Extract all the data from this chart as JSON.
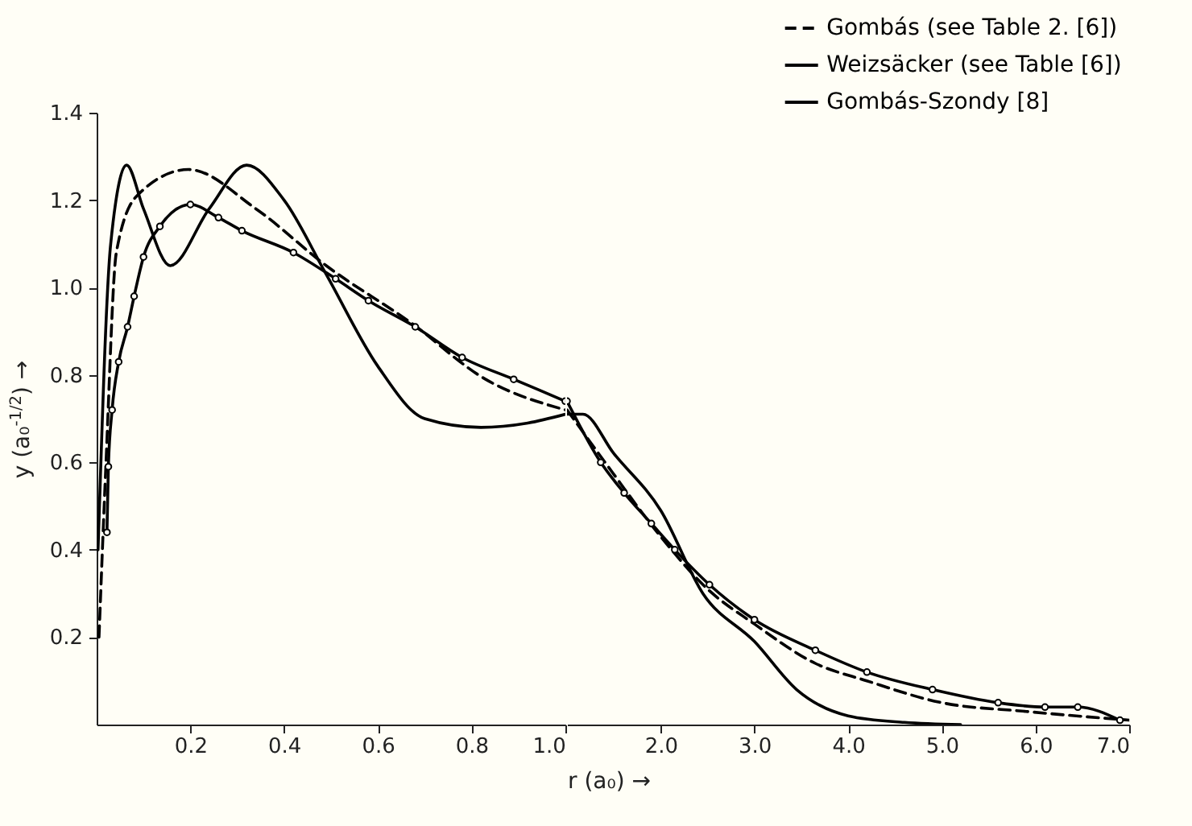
{
  "chart_data": [
    {
      "type": "line",
      "ylabel": "y (a₀$^{-1/2}$) →",
      "xlim": [
        0,
        1
      ],
      "xticks": [
        {
          "value": 0.2,
          "label": "0.2"
        },
        {
          "value": 0.4,
          "label": "0.4"
        },
        {
          "value": 0.6,
          "label": "0.6"
        },
        {
          "value": 0.8,
          "label": "0.8"
        },
        {
          "value": 1,
          "label": "1.0"
        }
      ],
      "ylim": [
        0,
        1.4
      ],
      "yticks": [
        {
          "value": 0.2,
          "label": "0.2"
        },
        {
          "value": 0.4,
          "label": "0.4"
        },
        {
          "value": 0.6,
          "label": "0.6"
        },
        {
          "value": 0.8,
          "label": "0.8"
        },
        {
          "value": 1,
          "label": "1.0"
        },
        {
          "value": 1.2,
          "label": "1.2"
        },
        {
          "value": 1.4,
          "label": "1.4"
        }
      ],
      "grid": false,
      "series": [
        {
          "color": "#000000",
          "line_style": "dashed",
          "x": [
            0.005,
            0.02,
            0.042,
            0.086,
            0.196,
            0.34,
            0.49,
            0.67,
            0.83,
            1.0
          ],
          "values": [
            0.2,
            0.6,
            1.08,
            1.21,
            1.27,
            1.18,
            1.05,
            0.92,
            0.79,
            0.72
          ]
        },
        {
          "color": "#000000",
          "line_style": "solid",
          "marker": "circle",
          "x": [
            0.022,
            0.025,
            0.033,
            0.047,
            0.066,
            0.08,
            0.1,
            0.135,
            0.2,
            0.26,
            0.31,
            0.42,
            0.51,
            0.58,
            0.68,
            0.78,
            0.89,
            1.0
          ],
          "values": [
            0.44,
            0.59,
            0.72,
            0.83,
            0.91,
            0.98,
            1.07,
            1.14,
            1.19,
            1.16,
            1.13,
            1.08,
            1.02,
            0.97,
            0.91,
            0.84,
            0.79,
            0.74
          ]
        },
        {
          "color": "#000000",
          "line_style": "solid",
          "x": [
            0.003,
            0.03,
            0.064,
            0.1,
            0.157,
            0.24,
            0.32,
            0.4,
            0.49,
            0.6,
            0.7,
            0.82,
            0.92,
            1.0
          ],
          "values": [
            0.4,
            1.1,
            1.28,
            1.18,
            1.05,
            1.18,
            1.28,
            1.2,
            1.03,
            0.82,
            0.7,
            0.68,
            0.69,
            0.71
          ]
        }
      ]
    },
    {
      "type": "line",
      "xlabel": "r (a₀) →",
      "xlim": [
        1,
        7
      ],
      "xticks": [
        {
          "value": 2,
          "label": "2.0"
        },
        {
          "value": 3,
          "label": "3.0"
        },
        {
          "value": 4,
          "label": "4.0"
        },
        {
          "value": 5,
          "label": "5.0"
        },
        {
          "value": 6,
          "label": "6.0"
        },
        {
          "value": 7,
          "label": "7.0"
        }
      ],
      "ylim": [
        0,
        1.4
      ],
      "tick_labels": "x",
      "grid": false,
      "legend": "top right",
      "series": [
        {
          "name": "Gombás (see Table 2. [6])",
          "color": "#000000",
          "line_style": "dashed",
          "x": [
            1.0,
            1.44,
            2.0,
            2.5,
            3.0,
            3.65,
            4.2,
            5.0,
            5.9,
            7.0
          ],
          "values": [
            0.72,
            0.59,
            0.43,
            0.31,
            0.23,
            0.14,
            0.1,
            0.05,
            0.03,
            0.01
          ]
        },
        {
          "name": "Weizsäcker (see Table [6])",
          "color": "#000000",
          "line_style": "solid",
          "marker": "circle",
          "x": [
            1.0,
            1.36,
            1.61,
            1.9,
            2.15,
            2.52,
            3.0,
            3.65,
            4.2,
            4.9,
            5.6,
            6.1,
            6.45,
            6.9
          ],
          "values": [
            0.74,
            0.6,
            0.53,
            0.46,
            0.4,
            0.32,
            0.24,
            0.17,
            0.12,
            0.08,
            0.05,
            0.04,
            0.04,
            0.01
          ]
        },
        {
          "name": "Gombás-Szondy [8]",
          "color": "#000000",
          "line_style": "solid",
          "x": [
            1.0,
            1.17,
            1.5,
            2.0,
            2.45,
            3.0,
            3.45,
            4.0,
            4.6,
            5.2
          ],
          "values": [
            0.71,
            0.71,
            0.62,
            0.49,
            0.3,
            0.19,
            0.08,
            0.02,
            0.005,
            0
          ]
        }
      ]
    }
  ]
}
